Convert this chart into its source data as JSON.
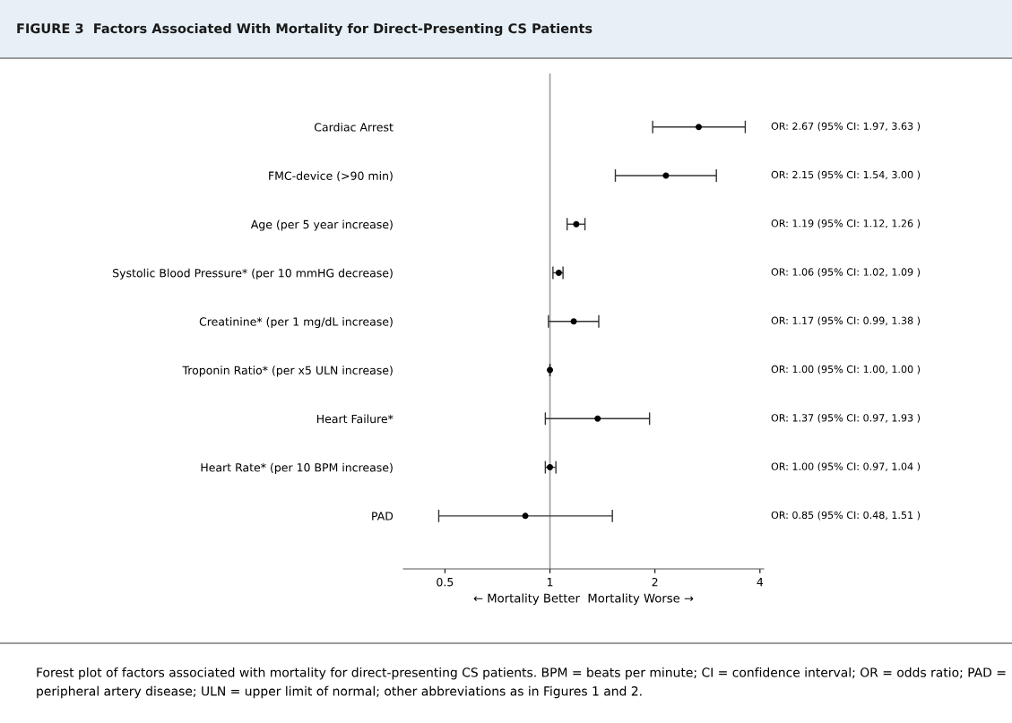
{
  "chart_data": {
    "type": "scatter",
    "orientation": "horizontal",
    "title": "FIGURE 3  Factors Associated With Mortality for Direct-Presenting CS Patients",
    "xlabel": "← Mortality Better  Mortality Worse →",
    "categories": [
      "Cardiac Arrest",
      "FMC-device (>90 min)",
      "Age (per 5 year increase)",
      "Systolic Blood Pressure* (per 10 mmHG decrease)",
      "Creatinine* (per 1 mg/dL increase)",
      "Troponin Ratio* (per x5 ULN increase)",
      "Heart Failure*",
      "Heart Rate* (per 10 BPM increase)",
      "PAD"
    ],
    "series": [
      {
        "color": "#000000",
        "values": [
          2.67,
          2.15,
          1.19,
          1.06,
          1.17,
          1.0,
          1.37,
          1.0,
          0.85
        ],
        "errors": [
          [
            1.97,
            3.63
          ],
          [
            1.54,
            3.0
          ],
          [
            1.12,
            1.26
          ],
          [
            1.02,
            1.09
          ],
          [
            0.99,
            1.38
          ],
          [
            1.0,
            1.0
          ],
          [
            0.97,
            1.93
          ],
          [
            0.97,
            1.04
          ],
          [
            0.48,
            1.51
          ]
        ],
        "value_labels": [
          "OR: 2.67 (95% CI: 1.97, 3.63 )",
          "OR: 2.15 (95% CI: 1.54, 3.00 )",
          "OR: 1.19 (95% CI: 1.12, 1.26 )",
          "OR: 1.06 (95% CI: 1.02, 1.09 )",
          "OR: 1.17 (95% CI: 0.99, 1.38 )",
          "OR: 1.00 (95% CI: 1.00, 1.00 )",
          "OR: 1.37 (95% CI: 0.97, 1.93 )",
          "OR: 1.00 (95% CI: 0.97, 1.04 )",
          "OR: 0.85 (95% CI: 0.48, 1.51 )"
        ]
      }
    ],
    "log": "x",
    "xlim": [
      0.38,
      4.1
    ],
    "xticks": [
      0.5,
      1,
      2,
      4
    ],
    "marker": "circle",
    "grid": false,
    "ref_lines": [
      {
        "axis": "x",
        "value": 1,
        "color": "#a0a0a0"
      }
    ],
    "annotations": [
      "Forest plot of factors associated with mortality for direct-presenting CS patients. BPM = beats per minute; CI = confidence interval; OR = odds ratio; PAD = peripheral artery disease; ULN = upper limit of normal; other abbreviations as in Figures 1 and 2."
    ]
  }
}
